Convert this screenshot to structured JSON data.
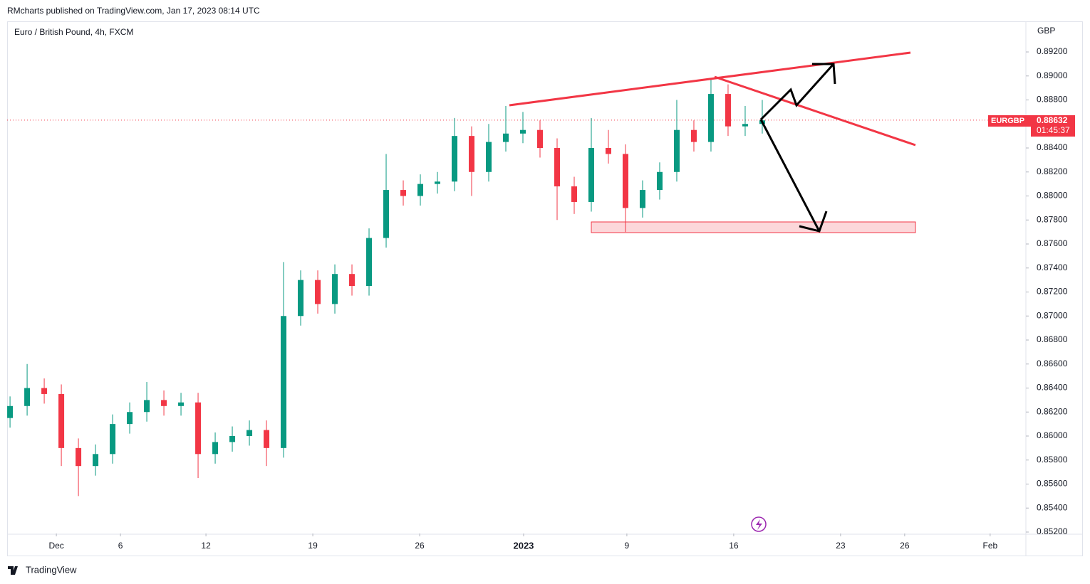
{
  "header": {
    "published": "RMcharts published on TradingView.com, Jan 17, 2023 08:14 UTC"
  },
  "footer": {
    "brand": "TradingView"
  },
  "chart_data": {
    "type": "candlestick",
    "title": "Euro / British Pound, 4h, FXCM",
    "currency": "GBP",
    "symbol": "EURGBP",
    "last_price": 0.88632,
    "countdown": "01:45:37",
    "up_color": "#089981",
    "down_color": "#f23645",
    "xlim": [
      -0.17,
      59.42
    ],
    "xticks": [
      {
        "value": 2.71,
        "label": "Dec"
      },
      {
        "value": 6.46,
        "label": "6"
      },
      {
        "value": 11.46,
        "label": "12"
      },
      {
        "value": 17.71,
        "label": "19"
      },
      {
        "value": 23.96,
        "label": "26"
      },
      {
        "value": 30.04,
        "label": "2023"
      },
      {
        "value": 36.08,
        "label": "9"
      },
      {
        "value": 42.33,
        "label": "16"
      },
      {
        "value": 48.58,
        "label": "23"
      },
      {
        "value": 52.33,
        "label": "26"
      },
      {
        "value": 57.33,
        "label": "Feb"
      }
    ],
    "ylim": [
      0.85188,
      0.89455
    ],
    "yticks": [
      {
        "value": 0.852,
        "label": "0.85200"
      },
      {
        "value": 0.854,
        "label": "0.85400"
      },
      {
        "value": 0.856,
        "label": "0.85600"
      },
      {
        "value": 0.858,
        "label": "0.85800"
      },
      {
        "value": 0.86,
        "label": "0.86000"
      },
      {
        "value": 0.862,
        "label": "0.86200"
      },
      {
        "value": 0.864,
        "label": "0.86400"
      },
      {
        "value": 0.866,
        "label": "0.86600"
      },
      {
        "value": 0.868,
        "label": "0.86800"
      },
      {
        "value": 0.87,
        "label": "0.87000"
      },
      {
        "value": 0.872,
        "label": "0.87200"
      },
      {
        "value": 0.874,
        "label": "0.87400"
      },
      {
        "value": 0.876,
        "label": "0.87600"
      },
      {
        "value": 0.878,
        "label": "0.87800"
      },
      {
        "value": 0.88,
        "label": "0.88000"
      },
      {
        "value": 0.882,
        "label": "0.88200"
      },
      {
        "value": 0.884,
        "label": "0.88400"
      },
      {
        "value": 0.886,
        "label": "0.88600"
      },
      {
        "value": 0.888,
        "label": "0.88800"
      },
      {
        "value": 0.89,
        "label": "0.89000"
      },
      {
        "value": 0.892,
        "label": "0.89200"
      }
    ],
    "open": [
      0.8615,
      0.8625,
      0.864,
      0.8635,
      0.859,
      0.8575,
      0.8585,
      0.861,
      0.862,
      0.863,
      0.8625,
      0.8628,
      0.8585,
      0.8595,
      0.86,
      0.8605,
      0.859,
      0.87,
      0.873,
      0.871,
      0.8735,
      0.8725,
      0.8765,
      0.8805,
      0.88,
      0.881,
      0.8812,
      0.885,
      0.882,
      0.8845,
      0.8852,
      0.8855,
      0.884,
      0.8808,
      0.8795,
      0.884,
      0.8835,
      0.879,
      0.8805,
      0.882,
      0.8855,
      0.8845,
      0.8885,
      0.8858,
      0.886
    ],
    "high": [
      0.8633,
      0.866,
      0.8648,
      0.8643,
      0.8598,
      0.8593,
      0.8618,
      0.8628,
      0.8645,
      0.8638,
      0.8636,
      0.8636,
      0.8603,
      0.8608,
      0.8613,
      0.8613,
      0.8745,
      0.8738,
      0.8738,
      0.8743,
      0.8743,
      0.8773,
      0.8835,
      0.8813,
      0.8818,
      0.882,
      0.8865,
      0.8858,
      0.886,
      0.8875,
      0.887,
      0.8863,
      0.8848,
      0.8816,
      0.8865,
      0.8855,
      0.8843,
      0.8813,
      0.8828,
      0.888,
      0.8863,
      0.8898,
      0.8893,
      0.8875,
      0.888
    ],
    "low": [
      0.8607,
      0.8617,
      0.8627,
      0.8575,
      0.855,
      0.8567,
      0.8577,
      0.8602,
      0.8612,
      0.8617,
      0.8617,
      0.8565,
      0.8577,
      0.8587,
      0.8592,
      0.8575,
      0.8582,
      0.8692,
      0.8702,
      0.8702,
      0.8717,
      0.8717,
      0.8757,
      0.8792,
      0.8792,
      0.8802,
      0.8804,
      0.88,
      0.8812,
      0.8837,
      0.8844,
      0.8832,
      0.878,
      0.8785,
      0.8787,
      0.8827,
      0.877,
      0.8782,
      0.8797,
      0.8812,
      0.8837,
      0.8837,
      0.885,
      0.885,
      0.8852
    ],
    "close": [
      0.8625,
      0.864,
      0.8635,
      0.859,
      0.8575,
      0.8585,
      0.861,
      0.862,
      0.863,
      0.8625,
      0.8628,
      0.8585,
      0.8595,
      0.86,
      0.8605,
      0.859,
      0.87,
      0.873,
      0.871,
      0.8735,
      0.8725,
      0.8765,
      0.8805,
      0.88,
      0.881,
      0.8812,
      0.885,
      0.882,
      0.8845,
      0.8852,
      0.8855,
      0.884,
      0.8808,
      0.8795,
      0.884,
      0.8835,
      0.879,
      0.8805,
      0.882,
      0.8855,
      0.8845,
      0.8885,
      0.8858,
      0.886,
      0.8863
    ]
  }
}
